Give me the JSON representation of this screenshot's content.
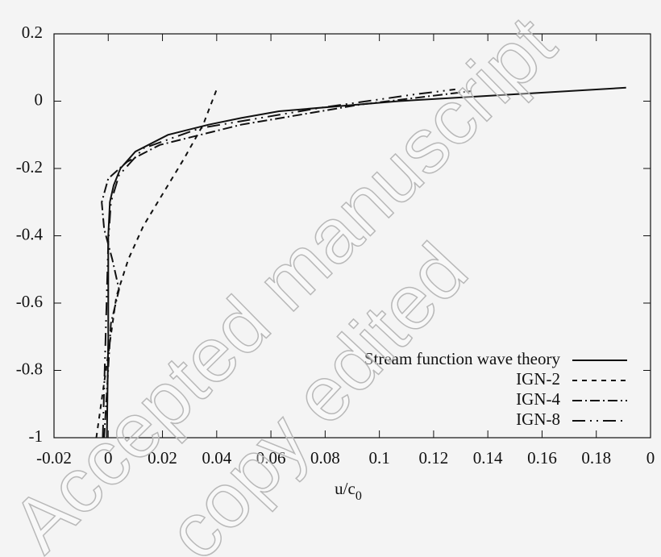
{
  "chart_data": {
    "type": "line",
    "xlabel": "u/c",
    "xlabel_sub": "0",
    "xlim": [
      -0.02,
      0.2
    ],
    "ylim": [
      -1,
      0.2
    ],
    "xticks": [
      -0.02,
      0,
      0.02,
      0.04,
      0.06,
      0.08,
      0.1,
      0.12,
      0.14,
      0.16,
      0.18,
      {
        "value": 0.2,
        "label": "0"
      }
    ],
    "yticks": [
      -1,
      -0.8,
      -0.6,
      -0.4,
      -0.2,
      0,
      0.2
    ],
    "legend": "lower right",
    "series": [
      {
        "name": "Stream function wave theory",
        "color": "#111111",
        "dash": "none",
        "x": [
          -0.0005,
          0,
          0,
          0.0006,
          0.002,
          0.0045,
          0.01,
          0.022,
          0.037,
          0.049,
          0.063,
          0.107,
          0.149,
          0.191
        ],
        "values": [
          -1,
          -0.7,
          -0.4,
          -0.3,
          -0.25,
          -0.2,
          -0.15,
          -0.1,
          -0.07,
          -0.05,
          -0.03,
          0,
          0.02,
          0.04
        ]
      },
      {
        "name": "IGN-2",
        "color": "#111111",
        "dash": "6,6",
        "x": [
          -0.0044,
          0.003,
          0.0074,
          0.013,
          0.019,
          0.028,
          0.035,
          0.04
        ],
        "values": [
          -1,
          -0.58,
          -0.47,
          -0.37,
          -0.29,
          -0.17,
          -0.07,
          0.035
        ]
      },
      {
        "name": "IGN-4",
        "color": "#111111",
        "dash": "12,4,2,4",
        "x": [
          -0.0015,
          0.001,
          0.004,
          0.0015,
          -0.0015,
          -0.0024,
          0,
          0.007,
          0.019,
          0.049,
          0.093,
          0.134
        ],
        "values": [
          -1,
          -0.66,
          -0.56,
          -0.47,
          -0.38,
          -0.3,
          -0.23,
          -0.18,
          -0.13,
          -0.07,
          -0.01,
          0.03
        ]
      },
      {
        "name": "IGN-8",
        "color": "#111111",
        "dash": "16,6,2,6,2,6",
        "x": [
          -0.002,
          -0.001,
          0,
          0.001,
          0.004,
          0.013,
          0.034,
          0.078,
          0.113,
          0.128
        ],
        "values": [
          -1,
          -0.71,
          -0.42,
          -0.3,
          -0.22,
          -0.14,
          -0.08,
          -0.02,
          0.02,
          0.035
        ]
      }
    ]
  },
  "watermark": [
    "Accepted manuscript",
    "copy edited"
  ]
}
